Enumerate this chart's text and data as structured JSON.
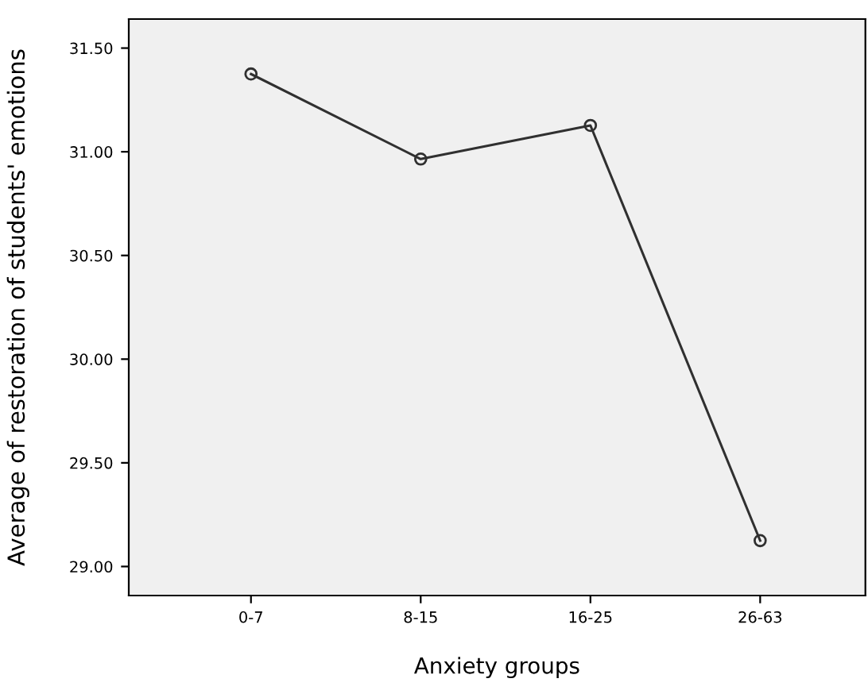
{
  "chart_data": {
    "type": "line",
    "xlabel": "Anxiety groups",
    "ylabel": "Average of restoration of students' emotions",
    "categories": [
      "0-7",
      "8-15",
      "16-25",
      "26-63"
    ],
    "series": [
      {
        "color": "#303030",
        "values": [
          31.375,
          30.965,
          31.127,
          29.125
        ]
      }
    ],
    "ylim": [
      28.86,
      31.64
    ],
    "yticks": [
      {
        "value": 29,
        "label": "29.00"
      },
      {
        "value": 29.5,
        "label": "29.50"
      },
      {
        "value": 30,
        "label": "30.00"
      },
      {
        "value": 30.5,
        "label": "30.50"
      },
      {
        "value": 31,
        "label": "31.00"
      },
      {
        "value": 31.5,
        "label": "31.50"
      }
    ],
    "marker": "circle",
    "line_style": "solid",
    "grid": false,
    "legend": false
  }
}
